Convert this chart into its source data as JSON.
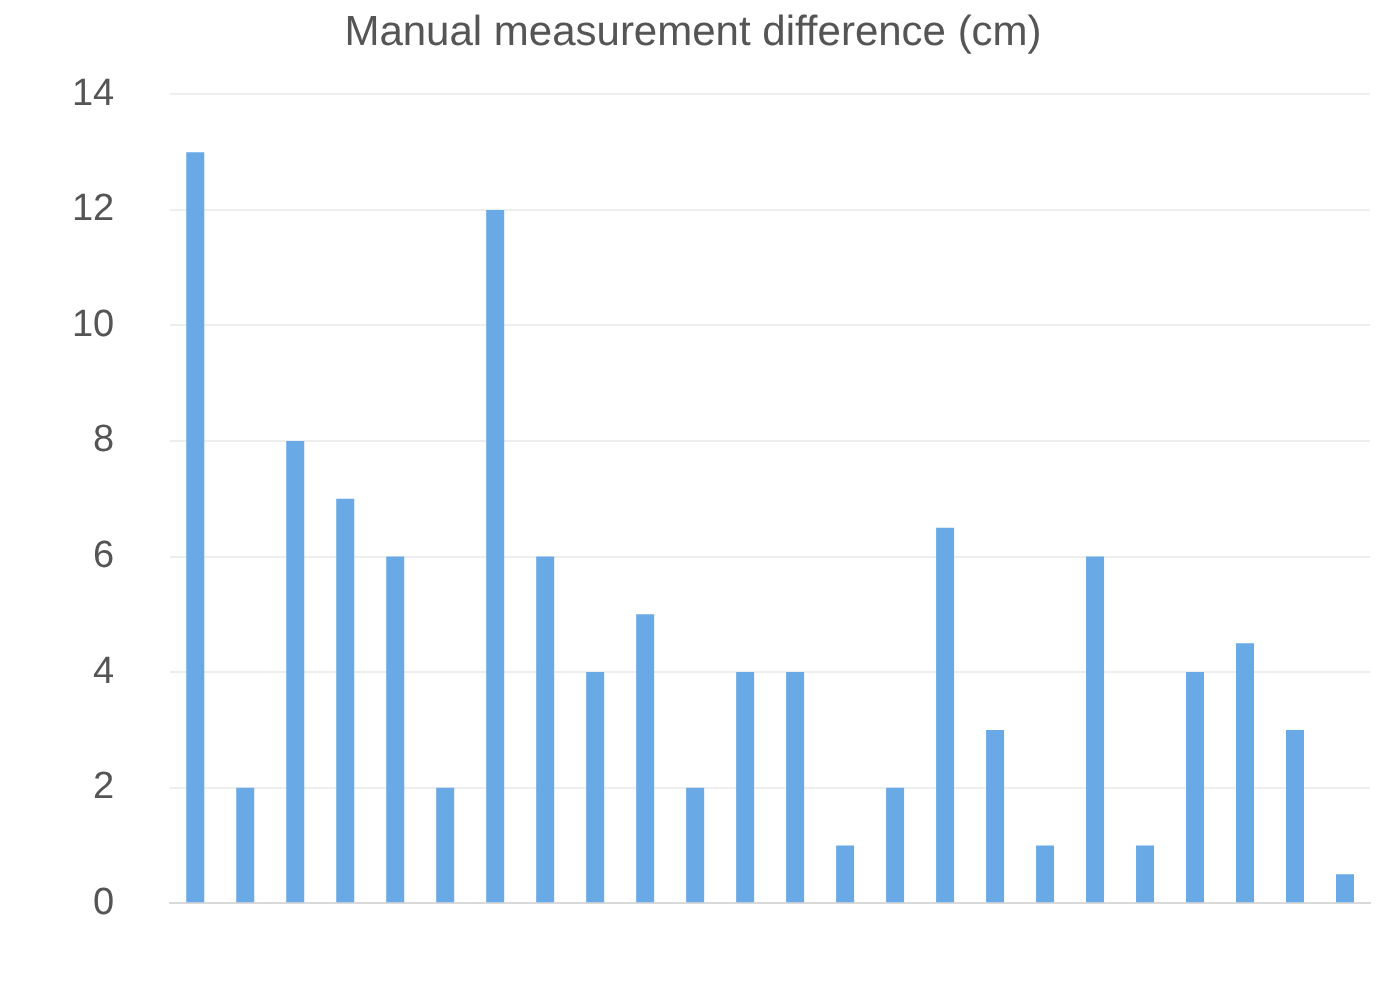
{
  "chart_data": {
    "type": "bar",
    "title": "Manual measurement difference (cm)",
    "categories": [
      null,
      null,
      null,
      null,
      null,
      null,
      null,
      null,
      null,
      null,
      null,
      null,
      null,
      null,
      null,
      null,
      null,
      null,
      null,
      null,
      null,
      null,
      null,
      null
    ],
    "values": [
      13,
      2,
      8,
      7,
      6,
      2,
      12,
      6,
      4,
      5,
      2,
      4,
      4,
      1,
      2,
      6.5,
      3,
      1,
      6,
      1,
      4,
      4.5,
      3,
      0.5
    ],
    "color": "#68a9e6",
    "ylim": [
      0,
      14
    ],
    "yticks": [
      0,
      2,
      4,
      6,
      8,
      10,
      12,
      14
    ],
    "grid": "y",
    "legend": false
  }
}
